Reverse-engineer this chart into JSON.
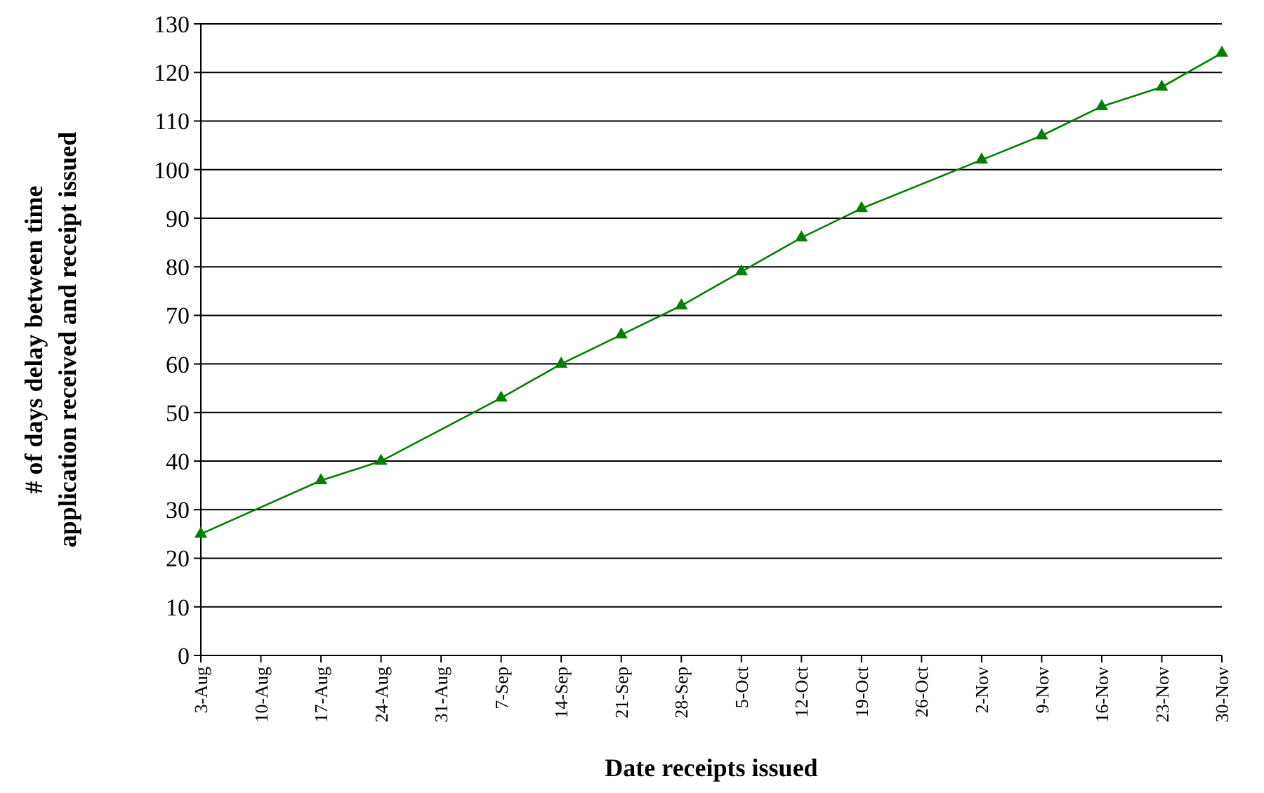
{
  "chart_data": {
    "type": "line",
    "xlabel": "Date receipts issued",
    "ylabel": "# of days delay between time application received and receipt issued",
    "x": [
      "--08-03",
      "--08-17",
      "--08-24",
      "--09-07",
      "--09-14",
      "--09-21",
      "--09-28",
      "--10-05",
      "--10-12",
      "--10-19",
      "--11-02",
      "--11-09",
      "--11-16",
      "--11-23",
      "--11-30"
    ],
    "series": [
      {
        "color": "#008000",
        "values": [
          25,
          36,
          40,
          53,
          60,
          66,
          72,
          79,
          86,
          92,
          102,
          107,
          113,
          117,
          124
        ]
      }
    ],
    "xlim": [
      "--08-03",
      "--11-30"
    ],
    "xticks": [
      {
        "value": "--08-03",
        "label": "3-Aug"
      },
      {
        "value": "--08-10",
        "label": "10-Aug"
      },
      {
        "value": "--08-17",
        "label": "17-Aug"
      },
      {
        "value": "--08-24",
        "label": "24-Aug"
      },
      {
        "value": "--08-31",
        "label": "31-Aug"
      },
      {
        "value": "--09-07",
        "label": "7-Sep"
      },
      {
        "value": "--09-14",
        "label": "14-Sep"
      },
      {
        "value": "--09-21",
        "label": "21-Sep"
      },
      {
        "value": "--09-28",
        "label": "28-Sep"
      },
      {
        "value": "--10-05",
        "label": "5-Oct"
      },
      {
        "value": "--10-12",
        "label": "12-Oct"
      },
      {
        "value": "--10-19",
        "label": "19-Oct"
      },
      {
        "value": "--10-26",
        "label": "26-Oct"
      },
      {
        "value": "--11-02",
        "label": "2-Nov"
      },
      {
        "value": "--11-09",
        "label": "9-Nov"
      },
      {
        "value": "--11-16",
        "label": "16-Nov"
      },
      {
        "value": "--11-23",
        "label": "23-Nov"
      },
      {
        "value": "--11-30",
        "label": "30-Nov"
      }
    ],
    "ylim": [
      0,
      130
    ],
    "yticks": [
      0,
      10,
      20,
      30,
      40,
      50,
      60,
      70,
      80,
      90,
      100,
      110,
      120,
      130
    ],
    "grid": "y",
    "marker": "triangle",
    "line_style": "solid"
  }
}
